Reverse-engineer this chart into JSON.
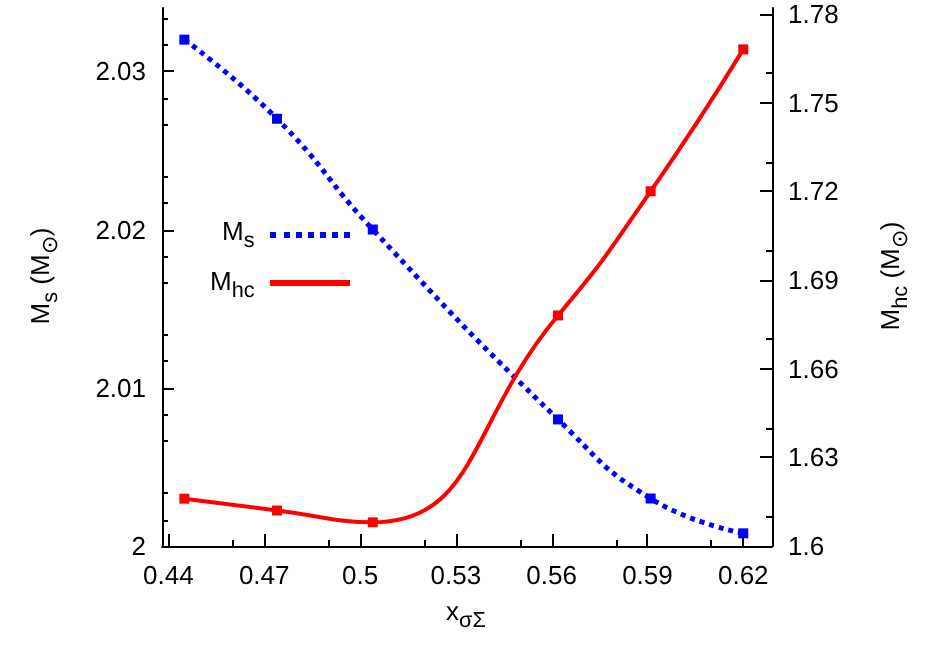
{
  "chart_data": {
    "type": "line",
    "xlabel": "x$_{σΣ}$",
    "ylabel": "M$_{s}$ (M$_{⊙}$)",
    "y2label": "M$_{hc}$ (M$_{⊙}$)",
    "x": [
      0.445,
      0.474,
      0.504,
      0.562,
      0.591,
      0.62
    ],
    "series": [
      {
        "name": "M$_{s}$",
        "color": "#0000ff",
        "line_style": "dotted",
        "values": [
          2.032,
          2.027,
          2.02,
          2.008,
          2.003,
          2.0008
        ]
      },
      {
        "name": "M$_{hc}$",
        "color": "#ff0000",
        "line_style": "solid",
        "axis": "y2",
        "values": [
          1.616,
          1.612,
          1.608,
          1.678,
          1.72,
          1.768
        ]
      }
    ],
    "xlim": [
      0.438,
      0.629
    ],
    "xticks": [
      0.44,
      0.47,
      0.5,
      0.53,
      0.56,
      0.59,
      0.62
    ],
    "ylim": [
      2,
      2.034
    ],
    "yticks": [
      2,
      2.01,
      2.02,
      2.03
    ],
    "y2lim": [
      1.6,
      1.782
    ],
    "y2ticks": [
      1.6,
      1.63,
      1.66,
      1.69,
      1.72,
      1.75,
      1.78
    ],
    "marker": "square",
    "grid": false,
    "legend": "left"
  }
}
